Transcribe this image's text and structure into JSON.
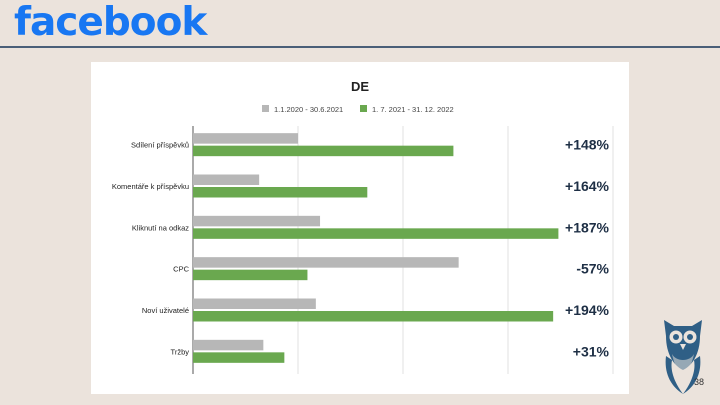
{
  "logo_text": "facebook",
  "slide_number": "38",
  "colors": {
    "logo": "#1877f2",
    "series_1": "#b7b7b7",
    "series_2": "#6aa84f",
    "change_text": "#1e2f45",
    "rule": "#4a5f78",
    "owl": "#2f5f86"
  },
  "chart_data": {
    "type": "bar",
    "orientation": "horizontal",
    "title": "DE",
    "categories": [
      "Sdílení příspěvků",
      "Komentáře k příspěvku",
      "Kliknutí na odkaz",
      "CPC",
      "Noví uživatelé",
      "Tržby"
    ],
    "series": [
      {
        "name": "1.1.2020 - 30.6.2021",
        "values": [
          100,
          63,
          121,
          253,
          117,
          67
        ]
      },
      {
        "name": "1. 7. 2021 - 31. 12. 2022",
        "values": [
          248,
          166,
          348,
          109,
          343,
          87
        ]
      }
    ],
    "annotations": [
      "+148%",
      "+164%",
      "+187%",
      "-57%",
      "+194%",
      "+31%"
    ],
    "xlim": [
      0,
      400
    ],
    "grid": true,
    "legend_position": "top"
  }
}
